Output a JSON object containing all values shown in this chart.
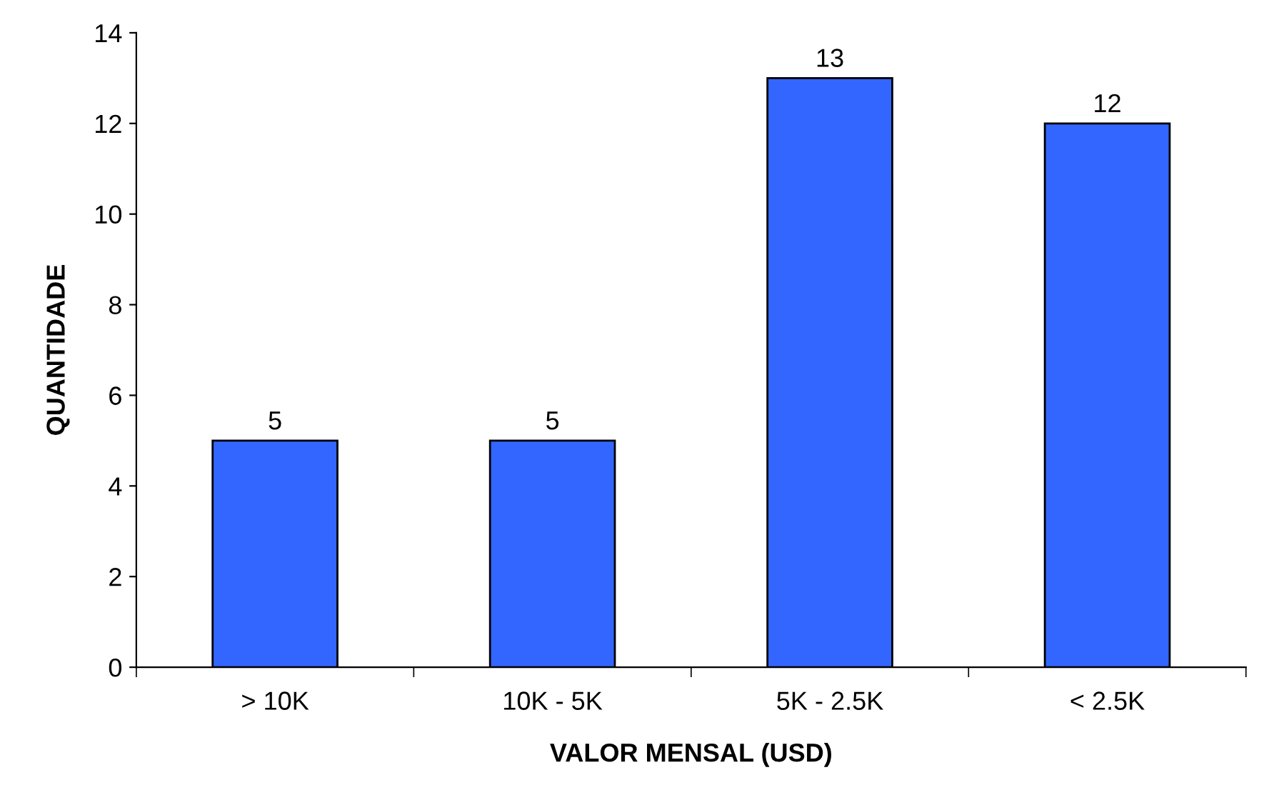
{
  "chart_data": {
    "type": "bar",
    "xlabel": "VALOR MENSAL (USD)",
    "ylabel": "QUANTIDADE",
    "categories": [
      "> 10K",
      "10K - 5K",
      "5K - 2.5K",
      "< 2.5K"
    ],
    "values": [
      5,
      5,
      13,
      12
    ],
    "color": "#3366ff",
    "ylim": [
      0,
      14
    ],
    "yticks": [
      0,
      2,
      4,
      6,
      8,
      10,
      12,
      14
    ],
    "grid": false,
    "data_labels": true
  }
}
